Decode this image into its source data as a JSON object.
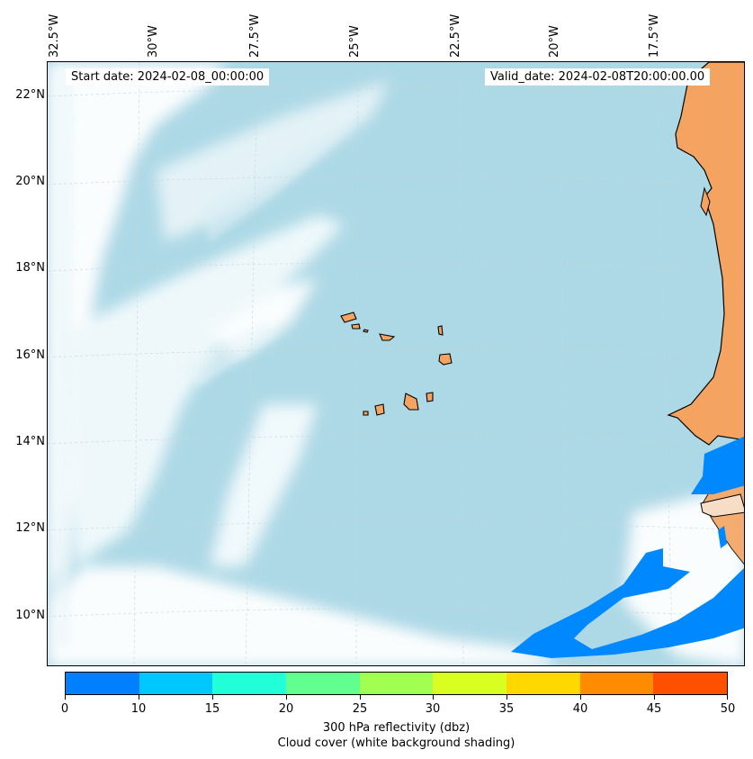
{
  "map": {
    "start_date": "Start date: 2024-02-08_00:00:00",
    "valid_date": "Valid_date: 2024-02-08T20:00:00.00",
    "lon_labels": [
      "32.5°W",
      "30°W",
      "27.5°W",
      "25°W",
      "22.5°W",
      "20°W",
      "17.5°W"
    ],
    "lat_labels": [
      "22°N",
      "20°N",
      "18°N",
      "16°N",
      "14°N",
      "12°N",
      "10°N"
    ],
    "colors": {
      "ocean": "#add8e6",
      "land": "#f4a460",
      "cloud": "#ffffff",
      "coast": "#000000"
    },
    "features": [
      "Cape Verde Islands",
      "West African coastline",
      "cloud cover shading",
      "reflectivity band"
    ]
  },
  "colorbar": {
    "tick_labels": [
      "0",
      "10",
      "15",
      "20",
      "25",
      "30",
      "35",
      "40",
      "45",
      "50"
    ],
    "colors": [
      "#0080ff",
      "#00c8ff",
      "#20ffd8",
      "#60ff90",
      "#a0ff50",
      "#d8ff20",
      "#ffd800",
      "#ff8c00",
      "#ff5000"
    ],
    "title_line1": "300 hPa reflectivity (dbz)",
    "title_line2": "Cloud cover (white background shading)"
  }
}
